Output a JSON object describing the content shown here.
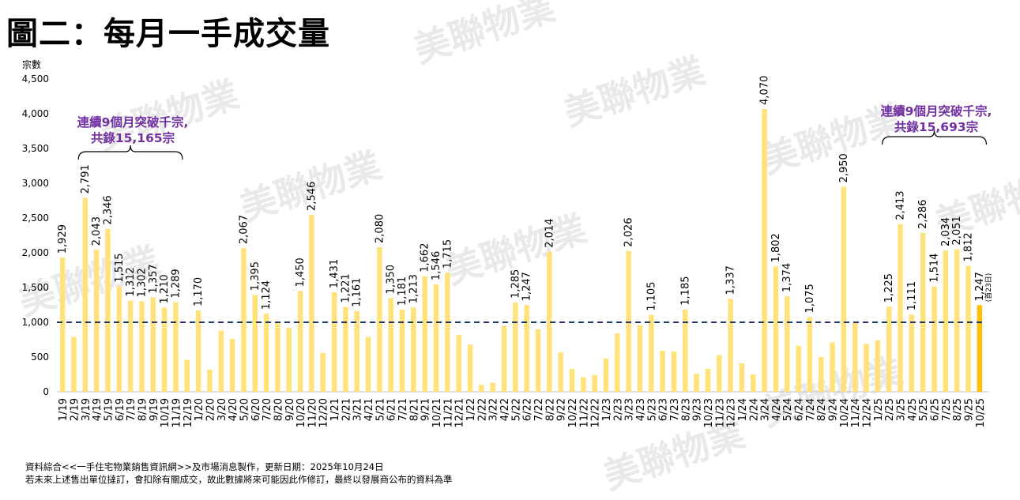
{
  "title": "圖二：每月一手成交量",
  "watermark": "美聯物業",
  "footer": {
    "line1": "資料綜合<<一手住宅物業銷售資訊網>>及市場消息製作，更新日期：2025年10月24日",
    "line2": "若未來上述售出單位撻訂，會扣除有關成交，故此數據將來可能因此作修訂，最終以發展商公布的資料為準"
  },
  "chart_data": {
    "type": "bar",
    "ylabel": "宗數",
    "ylim": [
      0,
      4500
    ],
    "yticks": [
      "0",
      "500",
      "1,000",
      "1,500",
      "2,000",
      "2,500",
      "3,000",
      "3,500",
      "4,000",
      "4,500"
    ],
    "reference_line": 1000,
    "colors": {
      "bar": "#FFE27A",
      "last_bar": "#FFC000",
      "ref_line": "#1F3864",
      "annotation": "#7030A0"
    },
    "categories": [
      "1/19",
      "2/19",
      "3/19",
      "4/19",
      "5/19",
      "6/19",
      "7/19",
      "8/19",
      "9/19",
      "10/19",
      "11/19",
      "12/19",
      "1/20",
      "2/20",
      "3/20",
      "4/20",
      "5/20",
      "6/20",
      "7/20",
      "8/20",
      "9/20",
      "10/20",
      "11/20",
      "12/20",
      "1/21",
      "2/21",
      "3/21",
      "4/21",
      "5/21",
      "6/21",
      "7/21",
      "8/21",
      "9/21",
      "10/21",
      "11/21",
      "12/21",
      "1/22",
      "2/22",
      "3/22",
      "4/22",
      "5/22",
      "6/22",
      "7/22",
      "8/22",
      "9/22",
      "10/22",
      "11/22",
      "12/22",
      "1/23",
      "2/23",
      "3/23",
      "4/23",
      "5/23",
      "6/23",
      "7/23",
      "8/23",
      "9/23",
      "10/23",
      "11/23",
      "12/23",
      "1/24",
      "2/24",
      "3/24",
      "4/24",
      "5/24",
      "6/24",
      "7/24",
      "8/24",
      "9/24",
      "10/24",
      "11/24",
      "12/24",
      "1/25",
      "2/25",
      "3/25",
      "4/25",
      "5/25",
      "6/25",
      "7/25",
      "8/25",
      "9/25",
      "10/25"
    ],
    "values": [
      1929,
      790,
      2791,
      2043,
      2346,
      1515,
      1312,
      1302,
      1357,
      1210,
      1289,
      460,
      1170,
      320,
      880,
      760,
      2067,
      1395,
      1124,
      990,
      920,
      1450,
      2546,
      560,
      1431,
      1221,
      1161,
      790,
      2080,
      1350,
      1181,
      1213,
      1662,
      1546,
      1715,
      820,
      680,
      100,
      130,
      950,
      1285,
      1247,
      900,
      2014,
      570,
      330,
      210,
      240,
      480,
      840,
      2026,
      960,
      1105,
      590,
      580,
      1185,
      260,
      330,
      530,
      1337,
      410,
      250,
      4070,
      1802,
      1374,
      660,
      1075,
      500,
      710,
      2950,
      990,
      690,
      740,
      1225,
      2413,
      1111,
      2286,
      1514,
      2034,
      2051,
      1812,
      1247
    ],
    "data_labels": {
      "0": "1,929",
      "2": "2,791",
      "3": "2,043",
      "4": "2,346",
      "5": "1,515",
      "6": "1,312",
      "7": "1,302",
      "8": "1,357",
      "9": "1,210",
      "10": "1,289",
      "12": "1,170",
      "16": "2,067",
      "17": "1,395",
      "18": "1,124",
      "21": "1,450",
      "22": "2,546",
      "24": "1,431",
      "25": "1,221",
      "26": "1,161",
      "28": "2,080",
      "29": "1,350",
      "30": "1,181",
      "31": "1,213",
      "32": "1,662",
      "33": "1,546",
      "34": "1,715",
      "40": "1,285",
      "41": "1,247",
      "43": "2,014",
      "50": "2,026",
      "52": "1,105",
      "55": "1,185",
      "59": "1,337",
      "62": "4,070",
      "63": "1,802",
      "64": "1,374",
      "66": "1,075",
      "69": "2,950",
      "73": "1,225",
      "74": "2,413",
      "75": "1,111",
      "76": "2,286",
      "77": "1,514",
      "78": "2,034",
      "79": "2,051",
      "80": "1,812",
      "81": "1,247"
    },
    "last_bar_note": "(首23日)",
    "annotations": [
      {
        "line1": "連續9個月突破千宗,",
        "line2": "共錄15,165宗",
        "from": 2,
        "to": 10
      },
      {
        "line1": "連續9個月突破千宗,",
        "line2": "共錄15,693宗",
        "from": 73,
        "to": 81
      }
    ]
  }
}
